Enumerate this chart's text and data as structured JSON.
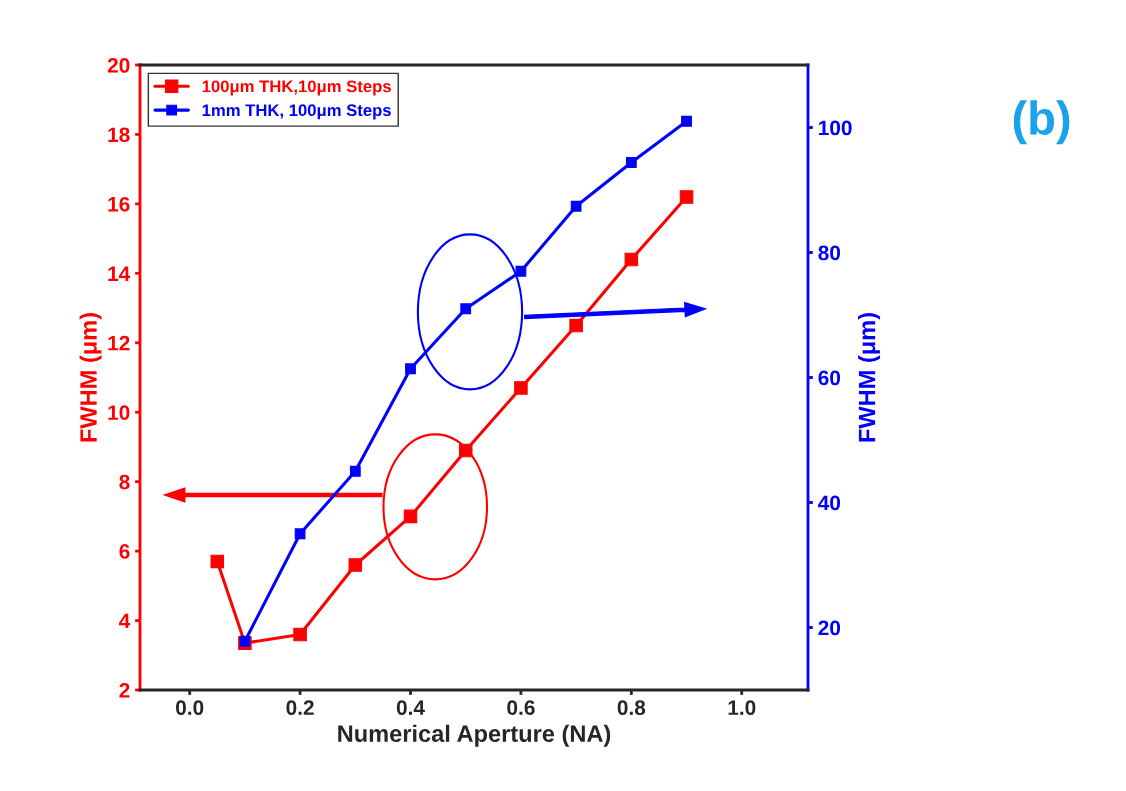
{
  "chart_data": {
    "type": "line",
    "xlabel": "Numerical Aperture (NA)",
    "ylabel": "FWHM (μm)",
    "y2label": "FWHM (μm)",
    "annotations": [
      "(b)"
    ],
    "xlim": [
      -0.09,
      1.12
    ],
    "xticks": [
      {
        "value": 0,
        "label": "0.0"
      },
      {
        "value": 0.2,
        "label": "0.2"
      },
      {
        "value": 0.4,
        "label": "0.4"
      },
      {
        "value": 0.6,
        "label": "0.6"
      },
      {
        "value": 0.8,
        "label": "0.8"
      },
      {
        "value": 1.0,
        "label": "1.0"
      }
    ],
    "ylim": [
      2,
      20
    ],
    "yticks": [
      2,
      4,
      6,
      8,
      10,
      12,
      14,
      16,
      18,
      20
    ],
    "y2lim": [
      10,
      110
    ],
    "y2ticks": [
      20,
      40,
      60,
      80,
      100
    ],
    "marker": "square",
    "line_style": "solid",
    "grid": false,
    "legend": "top left",
    "series": [
      {
        "name": "100μm THK,10μm Steps",
        "color": "#ff0000",
        "x": [
          0.05,
          0.1,
          0.2,
          0.3,
          0.4,
          0.5,
          0.6,
          0.7,
          0.8,
          0.9
        ],
        "values": [
          5.7,
          3.35,
          3.6,
          5.6,
          7.0,
          8.9,
          10.7,
          12.5,
          14.4,
          16.2
        ]
      },
      {
        "name": "1mm THK, 100μm Steps",
        "color": "#0000ff",
        "axis": "y2",
        "x": [
          0.1,
          0.2,
          0.3,
          0.4,
          0.5,
          0.6,
          0.7,
          0.8,
          0.9
        ],
        "values": [
          17.8,
          35,
          45,
          61.4,
          71,
          77,
          87.4,
          94.4,
          101
        ]
      }
    ]
  }
}
